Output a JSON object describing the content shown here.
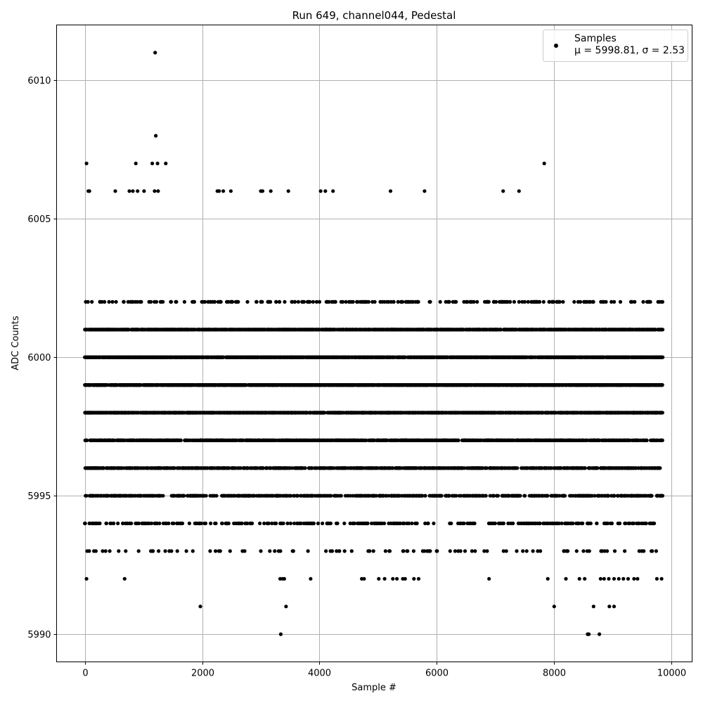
{
  "chart_data": {
    "type": "scatter",
    "title": "Run 649, channel044, Pedestal",
    "xlabel": "Sample #",
    "ylabel": "ADC Counts",
    "xlim": [
      -480,
      10350
    ],
    "ylim": [
      5989,
      6012
    ],
    "xticks": [
      0,
      2000,
      4000,
      6000,
      8000,
      10000
    ],
    "xtick_labels": [
      "0",
      "2000",
      "4000",
      "6000",
      "8000",
      "10000"
    ],
    "yticks": [
      5990,
      5995,
      6000,
      6005,
      6010
    ],
    "ytick_labels": [
      "5990",
      "5995",
      "6000",
      "6005",
      "6010"
    ],
    "grid": true,
    "legend_position": "top-right",
    "marker_color": "#000000",
    "series": [
      {
        "name": "Samples",
        "legend_label": "Samples",
        "legend_stats": "μ = 5998.81, σ = 2.53",
        "n_samples": 9850,
        "mean": 5998.81,
        "sigma": 2.53,
        "rare_points": [
          [
            1200,
            6011
          ],
          [
            1210,
            6008
          ],
          [
            30,
            6007
          ],
          [
            870,
            6007
          ],
          [
            1150,
            6007
          ],
          [
            1240,
            6007
          ],
          [
            1380,
            6007
          ],
          [
            7830,
            6007
          ],
          [
            60,
            6006
          ],
          [
            80,
            6006
          ],
          [
            520,
            6006
          ],
          [
            760,
            6006
          ],
          [
            820,
            6006
          ],
          [
            900,
            6006
          ],
          [
            1010,
            6006
          ],
          [
            1190,
            6006
          ],
          [
            1250,
            6006
          ],
          [
            2260,
            6006
          ],
          [
            2290,
            6006
          ],
          [
            2360,
            6006
          ],
          [
            2490,
            6006
          ],
          [
            3000,
            6006
          ],
          [
            3030,
            6006
          ],
          [
            3170,
            6006
          ],
          [
            3470,
            6006
          ],
          [
            4020,
            6006
          ],
          [
            4100,
            6006
          ],
          [
            4230,
            6006
          ],
          [
            5210,
            6006
          ],
          [
            5790,
            6006
          ],
          [
            7130,
            6006
          ],
          [
            7400,
            6006
          ],
          [
            30,
            5992
          ],
          [
            680,
            5992
          ],
          [
            3330,
            5992
          ],
          [
            3370,
            5992
          ],
          [
            3400,
            5992
          ],
          [
            3850,
            5992
          ],
          [
            4720,
            5992
          ],
          [
            4760,
            5992
          ],
          [
            5010,
            5992
          ],
          [
            5110,
            5992
          ],
          [
            5250,
            5992
          ],
          [
            5320,
            5992
          ],
          [
            5420,
            5992
          ],
          [
            5460,
            5992
          ],
          [
            5610,
            5992
          ],
          [
            5690,
            5992
          ],
          [
            6890,
            5992
          ],
          [
            7890,
            5992
          ],
          [
            8200,
            5992
          ],
          [
            8430,
            5992
          ],
          [
            8520,
            5992
          ],
          [
            8790,
            5992
          ],
          [
            8850,
            5992
          ],
          [
            8930,
            5992
          ],
          [
            9020,
            5992
          ],
          [
            9100,
            5992
          ],
          [
            9180,
            5992
          ],
          [
            9260,
            5992
          ],
          [
            9360,
            5992
          ],
          [
            9420,
            5992
          ],
          [
            9750,
            5992
          ],
          [
            9830,
            5992
          ],
          [
            1970,
            5991
          ],
          [
            3430,
            5991
          ],
          [
            8000,
            5991
          ],
          [
            8670,
            5991
          ],
          [
            8940,
            5991
          ],
          [
            9020,
            5991
          ],
          [
            3340,
            5990
          ],
          [
            8570,
            5990
          ],
          [
            8590,
            5990
          ],
          [
            8770,
            5990
          ]
        ]
      }
    ]
  }
}
